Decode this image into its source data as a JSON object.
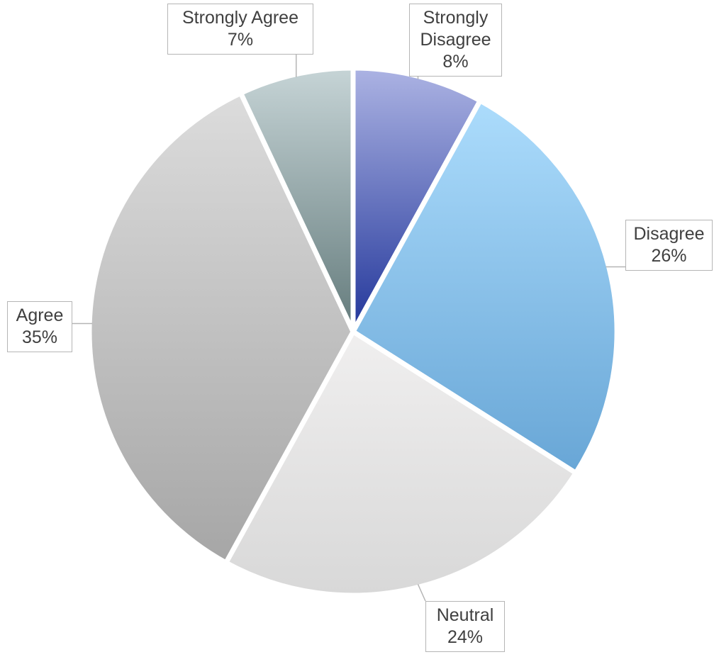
{
  "chart_data": {
    "type": "pie",
    "categories": [
      "Strongly Disagree",
      "Disagree",
      "Neutral",
      "Agree",
      "Strongly Agree"
    ],
    "values": [
      8,
      26,
      24,
      35,
      7
    ],
    "value_labels": [
      "8%",
      "26%",
      "24%",
      "35%",
      "7%"
    ],
    "colors": [
      [
        "#acb3e3",
        "#22369a"
      ],
      [
        "#acdcfc",
        "#68a6d6"
      ],
      [
        "#f0efef",
        "#d8d8d8"
      ],
      [
        "#dcdcdc",
        "#a6a6a6"
      ],
      [
        "#c6d4d6",
        "#647b7c"
      ]
    ]
  }
}
